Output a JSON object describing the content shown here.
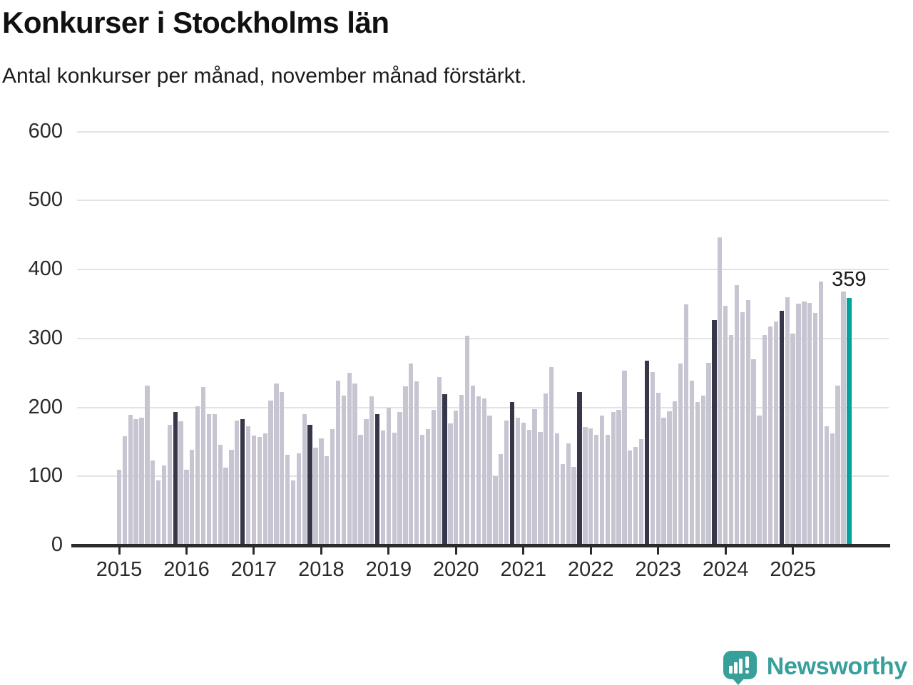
{
  "chart_data": {
    "type": "bar",
    "title": "Konkurser i Stockholms län",
    "subtitle": "Antal konkurser per månad, november månad förstärkt.",
    "ylabel": "",
    "xlabel": "",
    "ylim": [
      0,
      600
    ],
    "yticks": [
      0,
      100,
      200,
      300,
      400,
      500,
      600
    ],
    "grid": "horizontal",
    "legend": "none",
    "categories_note": "one bar per month, January-December per year",
    "years": [
      "2015",
      "2016",
      "2017",
      "2018",
      "2019",
      "2020",
      "2021",
      "2022",
      "2023",
      "2024",
      "2025"
    ],
    "series": [
      {
        "name": "2015",
        "values": [
          110,
          158,
          189,
          183,
          185,
          232,
          123,
          94,
          116,
          175,
          193,
          180
        ]
      },
      {
        "name": "2016",
        "values": [
          110,
          138,
          202,
          229,
          190,
          190,
          146,
          113,
          138,
          181,
          183,
          173
        ]
      },
      {
        "name": "2017",
        "values": [
          159,
          157,
          162,
          210,
          235,
          222,
          131,
          94,
          133,
          190,
          175,
          142
        ]
      },
      {
        "name": "2018",
        "values": [
          155,
          129,
          168,
          239,
          217,
          250,
          235,
          160,
          183,
          216,
          190,
          166
        ]
      },
      {
        "name": "2019",
        "values": [
          200,
          163,
          193,
          231,
          264,
          238,
          160,
          168,
          196,
          244,
          219,
          177
        ]
      },
      {
        "name": "2020",
        "values": [
          195,
          218,
          304,
          232,
          216,
          213,
          188,
          100,
          132,
          181,
          208,
          185
        ]
      },
      {
        "name": "2021",
        "values": [
          178,
          167,
          197,
          164,
          220,
          258,
          162,
          118,
          148,
          114,
          222,
          172
        ]
      },
      {
        "name": "2022",
        "values": [
          169,
          160,
          188,
          160,
          193,
          196,
          253,
          137,
          143,
          154,
          268,
          251
        ]
      },
      {
        "name": "2023",
        "values": [
          221,
          185,
          194,
          209,
          264,
          349,
          239,
          208,
          217,
          265,
          327,
          447
        ]
      },
      {
        "name": "2024",
        "values": [
          347,
          305,
          377,
          338,
          356,
          270,
          188,
          305,
          317,
          325,
          340,
          360
        ]
      },
      {
        "name": "2025",
        "values": [
          307,
          350,
          353,
          351,
          337,
          382,
          173,
          162,
          232,
          368,
          359
        ]
      }
    ],
    "highlighted_month_index": 10,
    "annotation": {
      "text": "359",
      "target": "november 2025"
    },
    "colors": {
      "bar_default": "#c7c5d1",
      "bar_november": "#37374a",
      "bar_latest_november": "#00a49c",
      "gridline": "#e3e3e3",
      "axis": "#2b2b2b",
      "text": "#1a1a1a"
    }
  },
  "footer": {
    "brand": "Newsworthy",
    "logo_icon": "speech-bubble-with-bar-chart-and-exclamation",
    "logo_color": "#38a09b"
  }
}
